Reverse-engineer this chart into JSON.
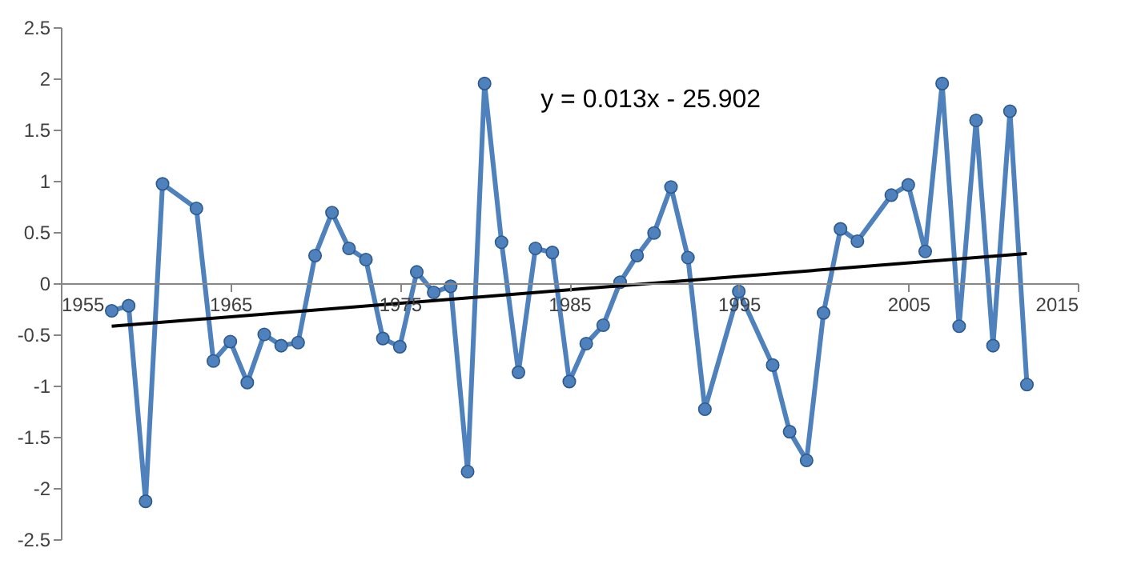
{
  "chart_data": {
    "type": "line",
    "marker": "circle",
    "grid": false,
    "annotations": [
      "y = 0.013x - 25.902"
    ],
    "xlim": [
      1955,
      2015
    ],
    "xticks": [
      1955,
      1965,
      1975,
      1985,
      1995,
      2005,
      2015
    ],
    "ylim": [
      -2.5,
      2.5
    ],
    "yticks": [
      -2.5,
      -2,
      -1.5,
      -1,
      -0.5,
      0,
      0.5,
      1,
      1.5,
      2,
      2.5
    ],
    "series": [
      {
        "color": "#4f81bd",
        "x": [
          1958,
          1959,
          1960,
          1961,
          1963,
          1964,
          1965,
          1966,
          1967,
          1968,
          1969,
          1970,
          1971,
          1972,
          1973,
          1974,
          1975,
          1976,
          1977,
          1978,
          1979,
          1980,
          1981,
          1982,
          1983,
          1984,
          1985,
          1986,
          1987,
          1988,
          1989,
          1990,
          1991,
          1992,
          1993,
          1995,
          1997,
          1998,
          1999,
          2000,
          2001,
          2002,
          2004,
          2005,
          2006,
          2007,
          2008,
          2009,
          2010,
          2011,
          2012
        ],
        "values": [
          -0.27,
          -0.22,
          -2.13,
          0.97,
          0.73,
          -0.76,
          -0.57,
          -0.97,
          -0.5,
          -0.61,
          -0.58,
          0.27,
          0.69,
          0.34,
          0.23,
          -0.54,
          -0.62,
          0.11,
          -0.09,
          -0.03,
          -1.84,
          1.95,
          0.4,
          -0.87,
          0.34,
          0.3,
          -0.96,
          -0.59,
          -0.41,
          0.01,
          0.27,
          0.49,
          0.94,
          0.25,
          -1.23,
          -0.08,
          -0.8,
          -1.45,
          -1.73,
          -0.29,
          0.53,
          0.41,
          0.86,
          0.96,
          0.31,
          1.95,
          -0.42,
          1.59,
          -0.61,
          1.68,
          -0.99
        ]
      },
      {
        "type": "line",
        "marker": "none",
        "color": "#000000",
        "x": [
          1958,
          2012
        ],
        "values": [
          -0.42,
          0.29
        ]
      }
    ]
  }
}
